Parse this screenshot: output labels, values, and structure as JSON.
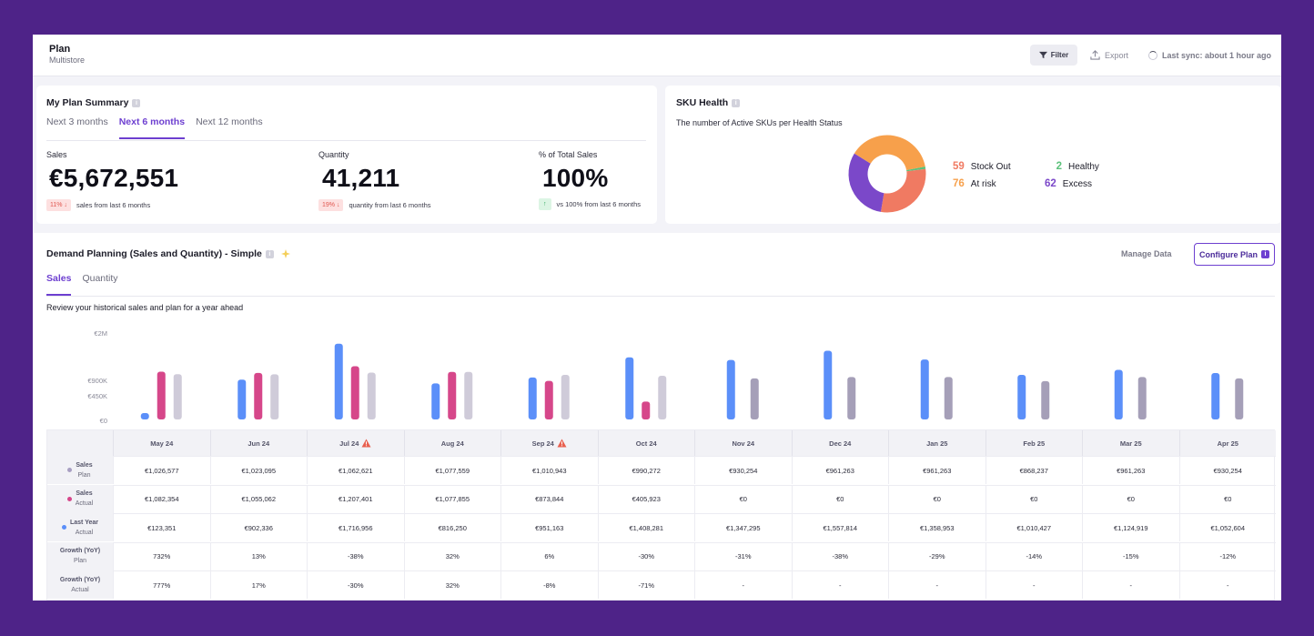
{
  "header": {
    "title": "Plan",
    "subtitle": "Multistore",
    "filter_label": "Filter",
    "export_label": "Export",
    "sync_label": "Last sync: about 1 hour ago"
  },
  "summary": {
    "title": "My Plan Summary",
    "tabs": [
      "Next 3 months",
      "Next 6 months",
      "Next 12 months"
    ],
    "active_tab": "Next 6 months",
    "metrics": [
      {
        "label": "Sales",
        "value": "€5,672,551",
        "badge": "11% ↓",
        "note": "sales from last 6 months"
      },
      {
        "label": "Quantity",
        "value": "41,211",
        "badge": "19% ↓",
        "note": "quantity from last 6 months"
      },
      {
        "label": "% of Total Sales",
        "value": "100%",
        "badge": "↑",
        "note": "vs 100% from last 6 months"
      }
    ]
  },
  "sku": {
    "title": "SKU Health",
    "subtitle": "The number of Active SKUs per Health Status",
    "items": [
      {
        "count": "59",
        "label": "Stock Out",
        "color": "#f07a62",
        "value": 59
      },
      {
        "count": "76",
        "label": "At risk",
        "color": "#f7a04b",
        "value": 76
      },
      {
        "count": "2",
        "label": "Healthy",
        "color": "#5cc27b",
        "value": 2
      },
      {
        "count": "62",
        "label": "Excess",
        "color": "#7b48c9",
        "value": 62
      }
    ]
  },
  "demand": {
    "title": "Demand Planning (Sales and Quantity) - Simple",
    "tabs": [
      "Sales",
      "Quantity"
    ],
    "active_tab": "Sales",
    "manage_label": "Manage Data",
    "configure_label": "Configure Plan",
    "review_text": "Review your historical sales and plan for a year ahead"
  },
  "chart_data": {
    "type": "bar",
    "title": "",
    "ylabel": "",
    "y_ticks": [
      "€2M",
      "€900K",
      "€450K",
      "€0"
    ],
    "y_tick_values": [
      2000000,
      900000,
      450000,
      0
    ],
    "ylim": [
      0,
      2000000
    ],
    "categories": [
      "May 24",
      "Jun 24",
      "Jul 24",
      "Aug 24",
      "Sep 24",
      "Oct 24",
      "Nov 24",
      "Dec 24",
      "Jan 25",
      "Feb 25",
      "Mar 25",
      "Apr 25"
    ],
    "series": [
      {
        "name": "Last Year Actual",
        "color": "#5b8ff9",
        "values": [
          123351,
          902336,
          1716956,
          816250,
          951163,
          1408281,
          1347295,
          1557814,
          1358953,
          1010427,
          1124919,
          1052604
        ]
      },
      {
        "name": "Sales Actual",
        "color": "#d6478a",
        "values": [
          1082354,
          1055062,
          1207401,
          1077855,
          873844,
          405923,
          0,
          0,
          0,
          0,
          0,
          0
        ]
      },
      {
        "name": "Sales Plan",
        "color": "#cfcbd9",
        "values": [
          1026577,
          1023095,
          1062621,
          1077559,
          1010943,
          990272,
          930254,
          961263,
          961263,
          868237,
          961263,
          930254
        ]
      }
    ],
    "warnings": [
      "Jul 24",
      "Sep 24"
    ]
  },
  "table": {
    "months": [
      "May 24",
      "Jun 24",
      "Jul 24",
      "Aug 24",
      "Sep 24",
      "Oct 24",
      "Nov 24",
      "Dec 24",
      "Jan 25",
      "Feb 25",
      "Mar 25",
      "Apr 25"
    ],
    "rows": [
      {
        "label": "Sales",
        "sub": "Plan",
        "dot": "#a89fc2",
        "cells": [
          "€1,026,577",
          "€1,023,095",
          "€1,062,621",
          "€1,077,559",
          "€1,010,943",
          "€990,272",
          "€930,254",
          "€961,263",
          "€961,263",
          "€868,237",
          "€961,263",
          "€930,254"
        ]
      },
      {
        "label": "Sales",
        "sub": "Actual",
        "dot": "#d6478a",
        "cells": [
          "€1,082,354",
          "€1,055,062",
          "€1,207,401",
          "€1,077,855",
          "€873,844",
          "€405,923",
          "€0",
          "€0",
          "€0",
          "€0",
          "€0",
          "€0"
        ]
      },
      {
        "label": "Last Year",
        "sub": "Actual",
        "dot": "#5b8ff9",
        "cells": [
          "€123,351",
          "€902,336",
          "€1,716,956",
          "€816,250",
          "€951,163",
          "€1,408,281",
          "€1,347,295",
          "€1,557,814",
          "€1,358,953",
          "€1,010,427",
          "€1,124,919",
          "€1,052,604"
        ]
      },
      {
        "label": "Growth (YoY)",
        "sub": "Plan",
        "dot": "",
        "cells": [
          "732%",
          "13%",
          "-38%",
          "32%",
          "6%",
          "-30%",
          "-31%",
          "-38%",
          "-29%",
          "-14%",
          "-15%",
          "-12%"
        ]
      },
      {
        "label": "Growth (YoY)",
        "sub": "Actual",
        "dot": "",
        "cells": [
          "777%",
          "17%",
          "-30%",
          "32%",
          "-8%",
          "-71%",
          "-",
          "-",
          "-",
          "-",
          "-",
          "-"
        ]
      }
    ]
  }
}
